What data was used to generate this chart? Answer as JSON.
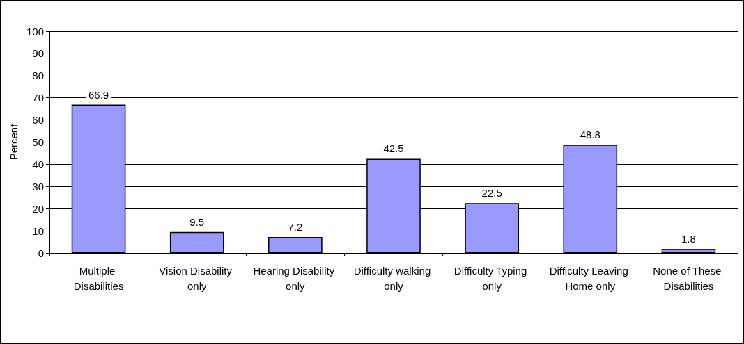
{
  "chart_data": {
    "type": "bar",
    "ylabel": "Percent",
    "categories": [
      "Multiple Disabilities",
      "Vision Disability only",
      "Hearing Disability only",
      "Difficulty walking only",
      "Difficulty Typing only",
      "Difficulty Leaving Home only",
      "None of These Disabilities"
    ],
    "values": [
      66.9,
      9.5,
      7.2,
      42.5,
      22.5,
      48.8,
      1.8
    ],
    "color": "#9999ff",
    "ylim": [
      0,
      100
    ],
    "yticks": [
      0,
      10,
      20,
      30,
      40,
      50,
      60,
      70,
      80,
      90,
      100
    ],
    "grid": "y",
    "data_labels": true
  }
}
